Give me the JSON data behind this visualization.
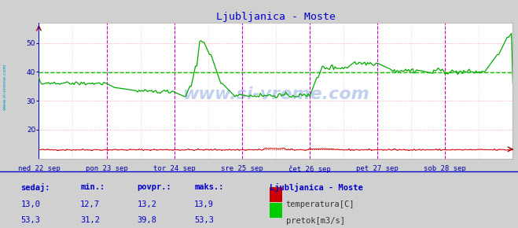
{
  "title": "Ljubljanica - Moste",
  "title_color": "#0000cc",
  "bg_color": "#d0d0d0",
  "plot_bg_color": "#ffffff",
  "grid_color_h": "#ff9999",
  "grid_color_v_major": "#ff66ff",
  "grid_color_v_minor": "#ffaaaa",
  "ylim": [
    10,
    57
  ],
  "yticks": [
    20,
    30,
    40,
    50
  ],
  "n_points": 337,
  "xlim": [
    0,
    336
  ],
  "day_ticks": [
    0,
    48,
    96,
    144,
    192,
    240,
    288,
    336
  ],
  "xlabel_ticks": [
    0,
    48,
    96,
    144,
    192,
    240,
    288
  ],
  "xlabel_labels": [
    "ned 22 sep",
    "pon 23 sep",
    "tor 24 sep",
    "sre 25 sep",
    "čet 26 sep",
    "pet 27 sep",
    "sob 28 sep"
  ],
  "vline_color_day": "#cc00cc",
  "avg_flow_value": 39.8,
  "avg_temp_value": 13.2,
  "avg_flow_color": "#00cc00",
  "avg_temp_color": "#ff0000",
  "watermark": "www.si-vreme.com",
  "watermark_color": "#3366cc",
  "legend_title": "Ljubljanica - Moste",
  "legend_title_color": "#0000cc",
  "legend_items": [
    {
      "label": "temperatura[C]",
      "color": "#cc0000"
    },
    {
      "label": "pretok[m3/s]",
      "color": "#00cc00"
    }
  ],
  "stats_headers": [
    "sedaj:",
    "min.:",
    "povpr.:",
    "maks.:"
  ],
  "stats_row1": [
    "13,0",
    "12,7",
    "13,2",
    "13,9"
  ],
  "stats_row2": [
    "53,3",
    "31,2",
    "39,8",
    "53,3"
  ],
  "sidebar_text": "www.si-vreme.com",
  "sidebar_color": "#0099bb",
  "temp_color": "#cc0000",
  "flow_color": "#00aa00"
}
